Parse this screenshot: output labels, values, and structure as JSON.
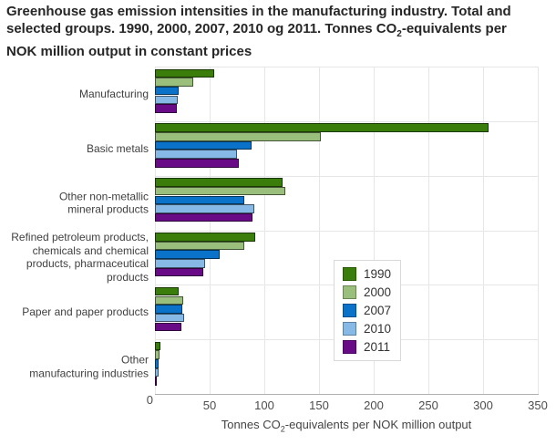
{
  "title": {
    "part1": "Greenhouse gas emission intensities in the manufacturing industry. Total and selected groups. 1990, 2000, 2007, 2010 og 2011. Tonnes CO",
    "sub": "2",
    "part2": "-equivalents per NOK million output in constant prices"
  },
  "xaxis": {
    "label_part1": "Tonnes CO",
    "label_sub": "2",
    "label_part2": "-equivalents per NOK million output",
    "ticks": [
      0,
      50,
      100,
      150,
      200,
      250,
      300,
      350
    ],
    "min": 0,
    "max": 350
  },
  "legend": {
    "entries": [
      {
        "label": "1990",
        "color": "#3a7d0b"
      },
      {
        "label": "2000",
        "color": "#9abf7c"
      },
      {
        "label": "2007",
        "color": "#0a72c8"
      },
      {
        "label": "2010",
        "color": "#87b9e6"
      },
      {
        "label": "2011",
        "color": "#690b87"
      }
    ]
  },
  "colors": {
    "bar_border": "rgba(0,0,0,0.55)",
    "gridline": "#e6e6e6",
    "axis_line": "#b0b0b0",
    "title_text": "#262626",
    "label_text": "#404040"
  },
  "chart_data": {
    "type": "bar",
    "orientation": "horizontal",
    "title": "Greenhouse gas emission intensities in the manufacturing industry. Total and selected groups. 1990, 2000, 2007, 2010 og 2011. Tonnes CO2-equivalents per NOK million output in constant prices",
    "xlabel": "Tonnes CO2-equivalents per NOK million output",
    "ylabel": "",
    "xlim": [
      0,
      350
    ],
    "grid": true,
    "legend_position": "center-right",
    "categories": [
      "Manufacturing",
      "Basic metals",
      "Other non-metallic mineral products",
      "Refined petroleum products, chemicals and chemical products, pharmaceutical products",
      "Paper and paper products",
      "Other manufacturing industries"
    ],
    "category_display_lines": [
      [
        "Manufacturing"
      ],
      [
        "Basic metals"
      ],
      [
        "Other non-metallic",
        "mineral products"
      ],
      [
        "Refined petroleum products,",
        "chemicals and chemical",
        "products, pharmaceutical",
        "products"
      ],
      [
        "Paper and paper products"
      ],
      [
        "Other",
        "manufacturing industries"
      ]
    ],
    "series": [
      {
        "name": "1990",
        "color": "#3a7d0b",
        "values": [
          54,
          305,
          117,
          92,
          22,
          5
        ]
      },
      {
        "name": "2000",
        "color": "#9abf7c",
        "values": [
          35,
          152,
          119,
          82,
          26,
          4
        ]
      },
      {
        "name": "2007",
        "color": "#0a72c8",
        "values": [
          22,
          88,
          82,
          59,
          25,
          3
        ]
      },
      {
        "name": "2010",
        "color": "#87b9e6",
        "values": [
          21,
          75,
          91,
          46,
          27,
          3
        ]
      },
      {
        "name": "2011",
        "color": "#690b87",
        "values": [
          20,
          77,
          89,
          44,
          24,
          2
        ]
      }
    ]
  }
}
